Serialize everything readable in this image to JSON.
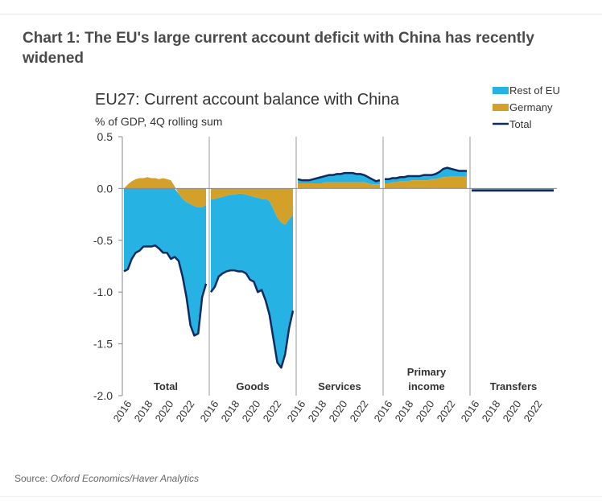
{
  "heading": "Chart 1: The EU's large current account deficit with China has recently widened",
  "source": {
    "label": "Source:",
    "text": "Oxford Economics/Haver Analytics"
  },
  "colors": {
    "rest_of_eu": "#27B2E4",
    "germany": "#D3A12A",
    "total": "#0E2A5E",
    "axis": "#888888",
    "divider": "#999999"
  },
  "chart_data": {
    "type": "area",
    "title": "EU27: Current account balance with China",
    "subtitle": "% of GDP, 4Q rolling sum",
    "ylim": [
      -2.0,
      0.5
    ],
    "yticks": [
      "0.5",
      "0.0",
      "-0.5",
      "-1.0",
      "-1.5",
      "-2.0"
    ],
    "grid": false,
    "legend": {
      "position": "top-right",
      "items": [
        {
          "label": "Rest of EU",
          "kind": "area",
          "color": "#27B2E4"
        },
        {
          "label": "Germany",
          "kind": "area",
          "color": "#D3A12A"
        },
        {
          "label": "Total",
          "kind": "line",
          "color": "#0E2A5E"
        }
      ]
    },
    "x_tick_labels": [
      "2016",
      "2018",
      "2020",
      "2022"
    ],
    "period_start": "2016",
    "period_end": "2023",
    "stacking": "germany above zero; rest of eu from zero down to germany plus total",
    "panels": [
      {
        "label": "Total",
        "germany": [
          0.0,
          0.04,
          0.07,
          0.09,
          0.1,
          0.1,
          0.11,
          0.1,
          0.1,
          0.09,
          0.1,
          0.09,
          0.08,
          0.02,
          -0.05,
          -0.1,
          -0.13,
          -0.15,
          -0.17,
          -0.18,
          -0.18,
          -0.16
        ],
        "total": [
          -0.8,
          -0.78,
          -0.68,
          -0.62,
          -0.6,
          -0.56,
          -0.56,
          -0.56,
          -0.55,
          -0.58,
          -0.62,
          -0.62,
          -0.68,
          -0.66,
          -0.7,
          -0.85,
          -1.05,
          -1.32,
          -1.42,
          -1.4,
          -1.05,
          -0.92
        ]
      },
      {
        "label": "Goods",
        "germany": [
          -0.1,
          -0.1,
          -0.09,
          -0.08,
          -0.07,
          -0.06,
          -0.06,
          -0.05,
          -0.05,
          -0.06,
          -0.07,
          -0.08,
          -0.09,
          -0.1,
          -0.1,
          -0.12,
          -0.2,
          -0.28,
          -0.33,
          -0.35,
          -0.3,
          -0.25
        ],
        "total": [
          -1.0,
          -0.95,
          -0.85,
          -0.82,
          -0.8,
          -0.79,
          -0.79,
          -0.8,
          -0.8,
          -0.82,
          -0.88,
          -0.9,
          -1.0,
          -0.98,
          -1.08,
          -1.22,
          -1.45,
          -1.68,
          -1.73,
          -1.6,
          -1.35,
          -1.18
        ]
      },
      {
        "label": "Services",
        "germany": [
          0.05,
          0.05,
          0.05,
          0.05,
          0.05,
          0.05,
          0.05,
          0.06,
          0.06,
          0.06,
          0.06,
          0.06,
          0.06,
          0.06,
          0.06,
          0.06,
          0.06,
          0.06,
          0.05,
          0.04,
          0.04,
          0.04
        ],
        "total": [
          0.09,
          0.08,
          0.08,
          0.08,
          0.09,
          0.1,
          0.11,
          0.12,
          0.13,
          0.13,
          0.14,
          0.14,
          0.15,
          0.15,
          0.15,
          0.14,
          0.14,
          0.13,
          0.11,
          0.09,
          0.07,
          0.08
        ]
      },
      {
        "label": "Primary income",
        "germany": [
          0.05,
          0.05,
          0.06,
          0.06,
          0.07,
          0.07,
          0.07,
          0.08,
          0.08,
          0.08,
          0.08,
          0.08,
          0.09,
          0.09,
          0.1,
          0.11,
          0.11,
          0.12,
          0.12,
          0.12,
          0.12,
          0.12
        ],
        "total": [
          0.09,
          0.09,
          0.1,
          0.1,
          0.11,
          0.11,
          0.12,
          0.12,
          0.12,
          0.12,
          0.13,
          0.13,
          0.13,
          0.14,
          0.16,
          0.19,
          0.2,
          0.19,
          0.18,
          0.17,
          0.17,
          0.17
        ]
      },
      {
        "label": "Transfers",
        "germany": [
          0.0,
          0.0,
          0.0,
          0.0,
          0.0,
          0.0,
          0.0,
          0.0,
          0.0,
          0.0,
          0.0,
          0.0,
          0.0,
          0.0,
          0.0,
          0.0,
          0.0,
          0.0,
          0.0,
          0.0,
          0.0,
          0.0
        ],
        "total": [
          -0.02,
          -0.02,
          -0.02,
          -0.02,
          -0.02,
          -0.02,
          -0.02,
          -0.02,
          -0.02,
          -0.02,
          -0.02,
          -0.02,
          -0.02,
          -0.02,
          -0.02,
          -0.02,
          -0.02,
          -0.02,
          -0.02,
          -0.02,
          -0.02,
          -0.02
        ]
      }
    ]
  }
}
